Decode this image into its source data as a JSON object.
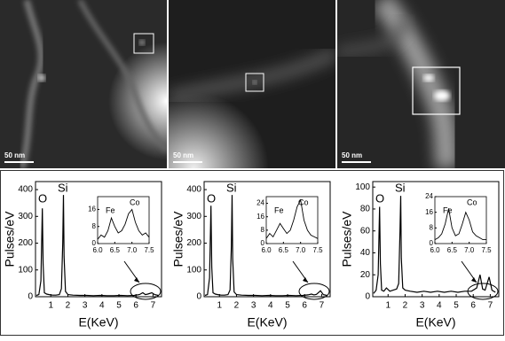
{
  "images": [
    {
      "scale_bar": "50 nm"
    },
    {
      "scale_bar": "50 nm"
    },
    {
      "scale_bar": "50 nm"
    }
  ],
  "chart_data": [
    {
      "type": "line",
      "ylabel": "Pulses/eV",
      "xlabel": "E(KeV)",
      "annotations": [
        "O",
        "Si"
      ],
      "xlim": [
        0.1,
        7.5
      ],
      "xticks": [
        1,
        2,
        3,
        4,
        5,
        6,
        7
      ],
      "ylim": [
        0,
        430
      ],
      "yticks": [
        0,
        100,
        200,
        300,
        400
      ],
      "x": [
        0.15,
        0.3,
        0.42,
        0.5,
        0.55,
        0.62,
        0.75,
        0.9,
        1.1,
        1.3,
        1.5,
        1.62,
        1.7,
        1.74,
        1.78,
        1.86,
        2.0,
        2.3,
        2.7,
        3.1,
        3.5,
        3.9,
        4.3,
        4.7,
        5.1,
        5.5,
        5.9,
        6.2,
        6.4,
        6.55,
        6.7,
        6.93,
        7.1,
        7.3
      ],
      "values": [
        5,
        8,
        60,
        330,
        120,
        15,
        10,
        8,
        6,
        6,
        8,
        30,
        200,
        380,
        150,
        20,
        8,
        6,
        5,
        5,
        4,
        5,
        4,
        4,
        5,
        4,
        5,
        8,
        15,
        8,
        10,
        15,
        8,
        5
      ],
      "inset": {
        "annotations": [
          "Fe",
          "Co"
        ],
        "xlim": [
          6.0,
          7.5
        ],
        "xticks": [
          {
            "value": 6,
            "label": "6.0"
          },
          6.5,
          {
            "value": 7,
            "label": "7.0"
          },
          7.5
        ],
        "ylim": [
          0,
          22
        ],
        "yticks": [
          0,
          8,
          16
        ],
        "x": [
          6.0,
          6.1,
          6.2,
          6.3,
          6.4,
          6.5,
          6.6,
          6.7,
          6.8,
          6.9,
          7.0,
          7.1,
          7.2,
          7.3,
          7.4,
          7.5
        ],
        "values": [
          2,
          4,
          3,
          6,
          12,
          8,
          5,
          6,
          9,
          14,
          16,
          10,
          6,
          4,
          5,
          3
        ]
      }
    },
    {
      "type": "line",
      "ylabel": "Pulses/eV",
      "xlabel": "E(KeV)",
      "annotations": [
        "O",
        "Si"
      ],
      "xlim": [
        0.1,
        7.5
      ],
      "xticks": [
        1,
        2,
        3,
        4,
        5,
        6,
        7
      ],
      "ylim": [
        0,
        430
      ],
      "yticks": [
        0,
        100,
        200,
        300,
        400
      ],
      "x": [
        0.15,
        0.3,
        0.42,
        0.5,
        0.55,
        0.62,
        0.75,
        0.9,
        1.1,
        1.3,
        1.5,
        1.62,
        1.7,
        1.74,
        1.78,
        1.86,
        2.0,
        2.3,
        2.7,
        3.1,
        3.5,
        3.9,
        4.3,
        4.7,
        5.1,
        5.5,
        5.9,
        6.2,
        6.4,
        6.55,
        6.7,
        6.93,
        7.1,
        7.3
      ],
      "values": [
        5,
        8,
        70,
        340,
        110,
        15,
        10,
        8,
        6,
        6,
        8,
        25,
        190,
        380,
        140,
        18,
        8,
        6,
        5,
        5,
        4,
        5,
        4,
        4,
        5,
        4,
        5,
        7,
        10,
        7,
        9,
        22,
        8,
        5
      ],
      "inset": {
        "annotations": [
          "Fe",
          "Co"
        ],
        "xlim": [
          6.0,
          7.5
        ],
        "xticks": [
          {
            "value": 6,
            "label": "6.0"
          },
          6.5,
          {
            "value": 7,
            "label": "7.0"
          },
          7.5
        ],
        "ylim": [
          0,
          28
        ],
        "yticks": [
          0,
          8,
          16,
          24
        ],
        "x": [
          6.0,
          6.1,
          6.2,
          6.3,
          6.4,
          6.5,
          6.6,
          6.7,
          6.8,
          6.9,
          7.0,
          7.1,
          7.2,
          7.3,
          7.4,
          7.5
        ],
        "values": [
          3,
          6,
          4,
          8,
          12,
          9,
          6,
          8,
          14,
          22,
          26,
          14,
          8,
          5,
          4,
          3
        ]
      }
    },
    {
      "type": "line",
      "ylabel": "Pulses/eV",
      "xlabel": "E(KeV)",
      "annotations": [
        "O",
        "Si"
      ],
      "xlim": [
        0.1,
        7.5
      ],
      "xticks": [
        1,
        2,
        3,
        4,
        5,
        6,
        7
      ],
      "ylim": [
        0,
        105
      ],
      "yticks": [
        0,
        20,
        40,
        60,
        80,
        100
      ],
      "x": [
        0.15,
        0.3,
        0.42,
        0.5,
        0.55,
        0.62,
        0.75,
        0.9,
        1.1,
        1.3,
        1.5,
        1.62,
        1.7,
        1.74,
        1.78,
        1.86,
        2.0,
        2.3,
        2.7,
        3.1,
        3.5,
        3.9,
        4.3,
        4.7,
        5.1,
        5.5,
        5.9,
        6.2,
        6.4,
        6.55,
        6.7,
        6.93,
        7.1,
        7.3
      ],
      "values": [
        3,
        6,
        20,
        82,
        30,
        6,
        5,
        8,
        5,
        6,
        7,
        12,
        60,
        92,
        35,
        8,
        6,
        5,
        4,
        5,
        4,
        5,
        4,
        5,
        4,
        5,
        5,
        8,
        20,
        7,
        6,
        18,
        6,
        4
      ],
      "inset": {
        "annotations": [
          "Fe",
          "Co"
        ],
        "xlim": [
          6.0,
          7.5
        ],
        "xticks": [
          {
            "value": 6,
            "label": "6.0"
          },
          6.5,
          {
            "value": 7,
            "label": "7.0"
          },
          7.5
        ],
        "ylim": [
          0,
          24
        ],
        "yticks": [
          0,
          8,
          16,
          24
        ],
        "x": [
          6.0,
          6.1,
          6.2,
          6.3,
          6.4,
          6.5,
          6.6,
          6.7,
          6.8,
          6.9,
          7.0,
          7.1,
          7.2,
          7.3,
          7.4,
          7.5
        ],
        "values": [
          2,
          3,
          5,
          10,
          18,
          8,
          4,
          5,
          10,
          16,
          12,
          6,
          4,
          3,
          2,
          2
        ]
      }
    }
  ]
}
